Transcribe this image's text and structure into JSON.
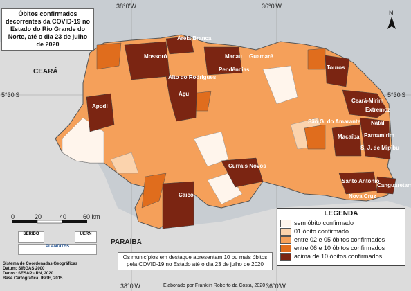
{
  "title": "Óbitos confirmados decorrentes da COVID-19 no Estado do Rio Grande do Norte, até o dia 23 de julho de 2020",
  "coords": {
    "lon_left": "38°0'W",
    "lon_right": "36°0'W",
    "lat_left": "5°30'S",
    "lat_right": "5°30'S"
  },
  "regions": {
    "ceara": "CEARÁ",
    "paraiba": "PARAÍBA"
  },
  "north": "N",
  "scale": {
    "labels": [
      "0",
      "20",
      "40",
      "60 km"
    ]
  },
  "legend": {
    "title": "LEGENDA",
    "items": [
      {
        "label": "sem óbito confirmado",
        "color": "#fff5ec"
      },
      {
        "label": "01 óbito confirmado",
        "color": "#fbd3ad"
      },
      {
        "label": "entre 02 e 05 óbitos confirmados",
        "color": "#f5a05a"
      },
      {
        "label": "entre 06 e 10 óbitos confirmados",
        "color": "#e06d1d"
      },
      {
        "label": "acima de 10 óbitos confirmados",
        "color": "#7b2512"
      }
    ]
  },
  "note": "Os municípios em destaque apresentam 10 ou mais óbitos pela COVID-19 no Estado até o dia 23 de julho de 2020",
  "meta": [
    "Sistema de Coordenadas Geográficas",
    "Datum: SIRGAS 2000",
    "Dados: SESAP - RN, 2020",
    "Base Cartográfica: IBGE, 2015"
  ],
  "credit": "Elaborado por Franklin Roberto da Costa, 2020",
  "logos": [
    "SERIDÓ",
    "UERN",
    "PLANDITES"
  ],
  "cities": [
    "Areia Branca",
    "Mossoró",
    "Macau",
    "Guamaré",
    "Pendências",
    "Alto do Rodrigues",
    "Touros",
    "Açu",
    "Apodi",
    "Ceará-Mirim",
    "Extremoz",
    "Natal",
    "São G. do Amarante",
    "Parnamirim",
    "Macaíba",
    "S. J. de Mipibu",
    "Currais Novos",
    "Santo Antônio",
    "Canguaretama",
    "Caicó",
    "Nova Cruz"
  ]
}
